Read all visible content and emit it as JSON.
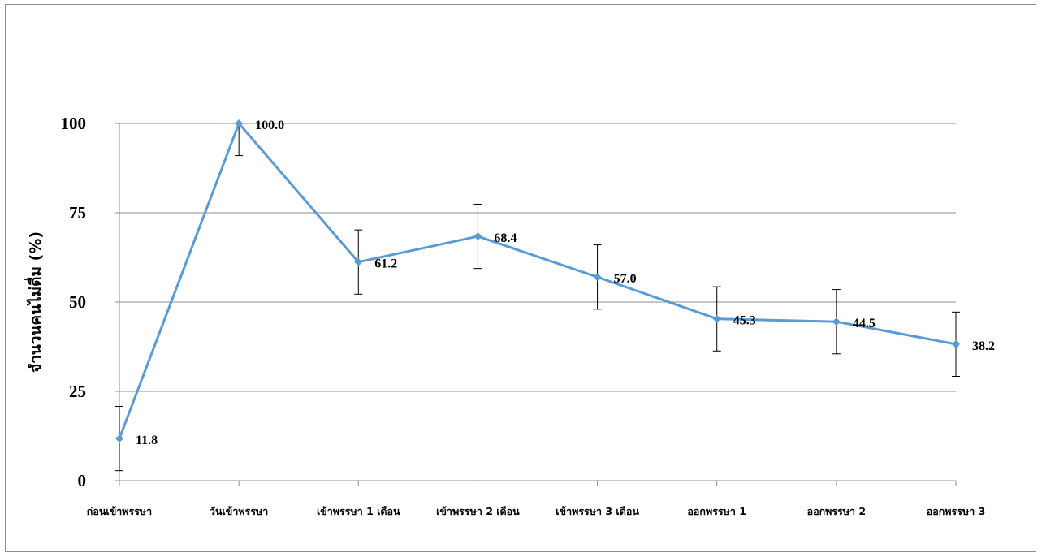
{
  "chart_data": {
    "type": "line",
    "title": "",
    "xlabel": "",
    "ylabel": "จำนวนคนไม่ดื่ม (%)",
    "ylim": [
      0,
      100
    ],
    "yticks": [
      0,
      25,
      50,
      75,
      100
    ],
    "grid": true,
    "categories": [
      "ก่อนเข้าพรรษา",
      "วันเข้าพรรษา",
      "เข้าพรรษา 1 เดือน",
      "เข้าพรรษา 2  เดือน",
      "เข้าพรรษา 3 เดือน",
      "ออกพรรษา 1",
      "ออกพรรษา 2",
      "ออกพรรษา 3"
    ],
    "series": [
      {
        "values": [
          11.8,
          100.0,
          61.2,
          68.4,
          57.0,
          45.3,
          44.5,
          38.2
        ],
        "labels": [
          "11.8",
          "100.0",
          "61.2",
          "68.4",
          "57.0",
          "45.3",
          "44.5",
          "38.2"
        ],
        "error_bars": [
          9.0,
          9.0,
          9.0,
          9.0,
          9.0,
          9.0,
          9.0,
          9.0
        ]
      }
    ],
    "colors": {
      "line": "#5b9bd5",
      "grid": "#8c8c8c",
      "error": "#000000"
    }
  }
}
